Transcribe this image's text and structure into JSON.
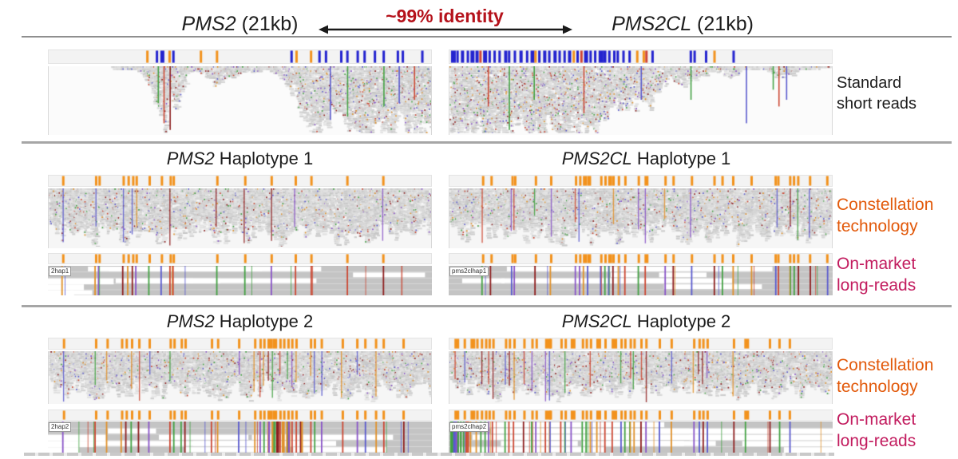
{
  "header": {
    "left": {
      "gene": "PMS2",
      "rest": " (21kb)"
    },
    "right": {
      "gene": "PMS2CL",
      "rest": " (21kb)"
    },
    "identity": "~99% identity"
  },
  "sections": {
    "hap1": {
      "left": {
        "gene": "PMS2",
        "rest": " Haplotype 1"
      },
      "right": {
        "gene": "PMS2CL",
        "rest": " Haplotype 1"
      }
    },
    "hap2": {
      "left": {
        "gene": "PMS2",
        "rest": " Haplotype 2"
      },
      "right": {
        "gene": "PMS2CL",
        "rest": " Haplotype 2"
      }
    }
  },
  "side_labels": {
    "short_reads": "Standard\nshort reads",
    "constellation": "Constellation\ntechnology",
    "long_reads": "On-market\nlong-reads"
  },
  "read_labels": {
    "hap1_left": "2hap1",
    "hap1_right": "pms2clhap1",
    "hap2_left": "2hap2",
    "hap2_right": "pms2clhap2"
  },
  "colors": {
    "identity_red": "#b5121b",
    "arrow_black": "#1a1a1a",
    "constellation_orange": "#e2590a",
    "longreads_magenta": "#c21b5e",
    "tick_blue": "#2323cf",
    "tick_orange": "#f2921d",
    "tick_red": "#cf4436",
    "block_gray": "#c4c4c4",
    "mm_g": "#44a244",
    "mm_bl": "#5a5ace",
    "mm_r": "#cc4833",
    "mm_o": "#e0912a",
    "mm_dr": "#8e1f1f",
    "mm_p": "#8a55c8"
  },
  "variant_ticks": {
    "short_left": [
      [
        0.255,
        "o"
      ],
      [
        0.28,
        "b"
      ],
      [
        0.292,
        "b",
        5
      ],
      [
        0.313,
        "o"
      ],
      [
        0.323,
        "b"
      ],
      [
        0.395,
        "o"
      ],
      [
        0.437,
        "o"
      ],
      [
        0.632,
        "b"
      ],
      [
        0.645,
        "o"
      ],
      [
        0.683,
        "o"
      ],
      [
        0.705,
        "b"
      ],
      [
        0.722,
        "b"
      ],
      [
        0.762,
        "b"
      ],
      [
        0.778,
        "b"
      ],
      [
        0.805,
        "b"
      ],
      [
        0.823,
        "b"
      ],
      [
        0.85,
        "b"
      ],
      [
        0.873,
        "b"
      ],
      [
        0.91,
        "b"
      ],
      [
        0.923,
        "b"
      ],
      [
        0.974,
        "b"
      ]
    ],
    "short_right": [
      [
        0.004,
        "b",
        6
      ],
      [
        0.018,
        "b"
      ],
      [
        0.03,
        "b",
        4
      ],
      [
        0.045,
        "b"
      ],
      [
        0.055,
        "b",
        5
      ],
      [
        0.068,
        "b",
        4
      ],
      [
        0.078,
        "r"
      ],
      [
        0.088,
        "b",
        5
      ],
      [
        0.102,
        "b"
      ],
      [
        0.115,
        "b"
      ],
      [
        0.128,
        "b"
      ],
      [
        0.143,
        "b",
        4
      ],
      [
        0.153,
        "b"
      ],
      [
        0.168,
        "b"
      ],
      [
        0.183,
        "b",
        4
      ],
      [
        0.2,
        "b"
      ],
      [
        0.212,
        "b",
        5
      ],
      [
        0.222,
        "o"
      ],
      [
        0.232,
        "b"
      ],
      [
        0.245,
        "b",
        4
      ],
      [
        0.258,
        "b"
      ],
      [
        0.272,
        "b",
        4
      ],
      [
        0.285,
        "b"
      ],
      [
        0.298,
        "b"
      ],
      [
        0.31,
        "b",
        4
      ],
      [
        0.322,
        "o"
      ],
      [
        0.332,
        "b"
      ],
      [
        0.342,
        "r"
      ],
      [
        0.352,
        "b",
        5
      ],
      [
        0.366,
        "b"
      ],
      [
        0.378,
        "b"
      ],
      [
        0.39,
        "b",
        6
      ],
      [
        0.402,
        "b",
        4
      ],
      [
        0.415,
        "b"
      ],
      [
        0.428,
        "b"
      ],
      [
        0.437,
        "b"
      ],
      [
        0.452,
        "b"
      ],
      [
        0.468,
        "b"
      ],
      [
        0.488,
        "o"
      ],
      [
        0.505,
        "o"
      ],
      [
        0.512,
        "r"
      ],
      [
        0.528,
        "b"
      ],
      [
        0.628,
        "b"
      ],
      [
        0.638,
        "b"
      ],
      [
        0.668,
        "b"
      ],
      [
        0.69,
        "o"
      ],
      [
        0.74,
        "b"
      ]
    ],
    "hap1_left": [
      [
        0.035,
        "o"
      ],
      [
        0.121,
        "o"
      ],
      [
        0.13,
        "o"
      ],
      [
        0.193,
        "o"
      ],
      [
        0.206,
        "o"
      ],
      [
        0.218,
        "o"
      ],
      [
        0.227,
        "o"
      ],
      [
        0.261,
        "o"
      ],
      [
        0.293,
        "o"
      ],
      [
        0.316,
        "o"
      ],
      [
        0.324,
        "o"
      ],
      [
        0.438,
        "o"
      ],
      [
        0.511,
        "o"
      ],
      [
        0.58,
        "o"
      ],
      [
        0.643,
        "o"
      ],
      [
        0.684,
        "o"
      ],
      [
        0.778,
        "o"
      ],
      [
        0.872,
        "o"
      ]
    ],
    "hap1_right": [
      [
        0.085,
        "o"
      ],
      [
        0.107,
        "o"
      ],
      [
        0.162,
        "o"
      ],
      [
        0.169,
        "o"
      ],
      [
        0.223,
        "o"
      ],
      [
        0.263,
        "o"
      ],
      [
        0.328,
        "o"
      ],
      [
        0.339,
        "o"
      ],
      [
        0.349,
        "o",
        5
      ],
      [
        0.36,
        "o",
        5
      ],
      [
        0.394,
        "o"
      ],
      [
        0.405,
        "o"
      ],
      [
        0.415,
        "o",
        5
      ],
      [
        0.426,
        "o"
      ],
      [
        0.44,
        "o"
      ],
      [
        0.457,
        "o"
      ],
      [
        0.492,
        "o"
      ],
      [
        0.51,
        "o",
        5
      ],
      [
        0.562,
        "o"
      ],
      [
        0.583,
        "o"
      ],
      [
        0.631,
        "o"
      ],
      [
        0.69,
        "o"
      ],
      [
        0.711,
        "o"
      ],
      [
        0.739,
        "o"
      ],
      [
        0.787,
        "o"
      ],
      [
        0.85,
        "o"
      ],
      [
        0.857,
        "o"
      ],
      [
        0.888,
        "o"
      ],
      [
        0.898,
        "o"
      ],
      [
        0.909,
        "o"
      ],
      [
        0.94,
        "o"
      ],
      [
        0.985,
        "o"
      ]
    ],
    "hap2_left": [
      [
        0.037,
        "o"
      ],
      [
        0.121,
        "o"
      ],
      [
        0.151,
        "o"
      ],
      [
        0.189,
        "o"
      ],
      [
        0.201,
        "o"
      ],
      [
        0.215,
        "o"
      ],
      [
        0.234,
        "o"
      ],
      [
        0.261,
        "o"
      ],
      [
        0.316,
        "o"
      ],
      [
        0.326,
        "o"
      ],
      [
        0.345,
        "o"
      ],
      [
        0.355,
        "o"
      ],
      [
        0.424,
        "o"
      ],
      [
        0.44,
        "o"
      ],
      [
        0.495,
        "o"
      ],
      [
        0.537,
        "o"
      ],
      [
        0.551,
        "o"
      ],
      [
        0.561,
        "o"
      ],
      [
        0.572,
        "o",
        6
      ],
      [
        0.585,
        "o",
        6
      ],
      [
        0.603,
        "o"
      ],
      [
        0.613,
        "o"
      ],
      [
        0.624,
        "o"
      ],
      [
        0.634,
        "o"
      ],
      [
        0.645,
        "o"
      ],
      [
        0.683,
        "o"
      ],
      [
        0.693,
        "o"
      ],
      [
        0.711,
        "o"
      ],
      [
        0.766,
        "o"
      ],
      [
        0.804,
        "o"
      ],
      [
        0.825,
        "o"
      ],
      [
        0.853,
        "o"
      ],
      [
        0.873,
        "o"
      ],
      [
        0.925,
        "o"
      ]
    ],
    "hap2_right": [
      [
        0.013,
        "o",
        6
      ],
      [
        0.037,
        "o"
      ],
      [
        0.055,
        "o",
        6
      ],
      [
        0.07,
        "o"
      ],
      [
        0.082,
        "o"
      ],
      [
        0.093,
        "o"
      ],
      [
        0.102,
        "o"
      ],
      [
        0.112,
        "o"
      ],
      [
        0.145,
        "o"
      ],
      [
        0.155,
        "o"
      ],
      [
        0.167,
        "o"
      ],
      [
        0.193,
        "o"
      ],
      [
        0.214,
        "o"
      ],
      [
        0.225,
        "o"
      ],
      [
        0.25,
        "o",
        7
      ],
      [
        0.262,
        "o"
      ],
      [
        0.29,
        "o"
      ],
      [
        0.301,
        "o"
      ],
      [
        0.317,
        "o",
        6
      ],
      [
        0.346,
        "o"
      ],
      [
        0.356,
        "o"
      ],
      [
        0.367,
        "o"
      ],
      [
        0.384,
        "o",
        6
      ],
      [
        0.405,
        "o"
      ],
      [
        0.424,
        "o",
        7
      ],
      [
        0.447,
        "o"
      ],
      [
        0.457,
        "o"
      ],
      [
        0.471,
        "o"
      ],
      [
        0.481,
        "o"
      ],
      [
        0.499,
        "o"
      ],
      [
        0.512,
        "o"
      ],
      [
        0.547,
        "o"
      ],
      [
        0.578,
        "o"
      ],
      [
        0.637,
        "o"
      ],
      [
        0.651,
        "o"
      ],
      [
        0.661,
        "o"
      ],
      [
        0.672,
        "o"
      ],
      [
        0.741,
        "o"
      ],
      [
        0.771,
        "o",
        6
      ],
      [
        0.835,
        "o"
      ],
      [
        0.86,
        "o"
      ],
      [
        0.887,
        "o"
      ]
    ]
  },
  "profiles": {
    "short_left": [
      [
        0,
        0
      ],
      [
        0.16,
        0
      ],
      [
        0.17,
        0.05
      ],
      [
        0.2,
        0.03
      ],
      [
        0.24,
        0.06
      ],
      [
        0.26,
        0.35
      ],
      [
        0.285,
        0.55
      ],
      [
        0.3,
        0.85
      ],
      [
        0.315,
        0.45
      ],
      [
        0.33,
        0.65
      ],
      [
        0.345,
        0.3
      ],
      [
        0.36,
        0.15
      ],
      [
        0.38,
        0.05
      ],
      [
        0.41,
        0.12
      ],
      [
        0.43,
        0.3
      ],
      [
        0.455,
        0.18
      ],
      [
        0.48,
        0.12
      ],
      [
        0.51,
        0.1
      ],
      [
        0.54,
        0.06
      ],
      [
        0.57,
        0.06
      ],
      [
        0.6,
        0.12
      ],
      [
        0.62,
        0.25
      ],
      [
        0.645,
        0.45
      ],
      [
        0.66,
        0.65
      ],
      [
        0.68,
        0.75
      ],
      [
        0.7,
        0.9
      ],
      [
        0.73,
        0.8
      ],
      [
        0.76,
        0.7
      ],
      [
        0.79,
        0.85
      ],
      [
        0.82,
        0.95
      ],
      [
        0.85,
        0.8
      ],
      [
        0.88,
        0.9
      ],
      [
        0.91,
        0.75
      ],
      [
        0.94,
        0.9
      ],
      [
        0.97,
        0.8
      ],
      [
        1,
        0.85
      ]
    ],
    "short_right": [
      [
        0,
        0.9
      ],
      [
        0.03,
        0.98
      ],
      [
        0.07,
        0.85
      ],
      [
        0.1,
        0.95
      ],
      [
        0.14,
        0.9
      ],
      [
        0.18,
        0.8
      ],
      [
        0.22,
        0.95
      ],
      [
        0.26,
        0.85
      ],
      [
        0.3,
        0.9
      ],
      [
        0.34,
        0.8
      ],
      [
        0.37,
        0.9
      ],
      [
        0.4,
        0.65
      ],
      [
        0.44,
        0.5
      ],
      [
        0.47,
        0.6
      ],
      [
        0.5,
        0.4
      ],
      [
        0.52,
        0.55
      ],
      [
        0.55,
        0.25
      ],
      [
        0.58,
        0.2
      ],
      [
        0.61,
        0.25
      ],
      [
        0.64,
        0.15
      ],
      [
        0.67,
        0.1
      ],
      [
        0.7,
        0.06
      ],
      [
        0.73,
        0.15
      ],
      [
        0.76,
        0.05
      ],
      [
        0.79,
        0.03
      ],
      [
        0.82,
        0.04
      ],
      [
        0.85,
        0.12
      ],
      [
        0.88,
        0.14
      ],
      [
        0.91,
        0.06
      ],
      [
        0.95,
        0.03
      ],
      [
        1,
        0.02
      ]
    ],
    "dense": [
      [
        0,
        0.55
      ],
      [
        0.04,
        0.75
      ],
      [
        0.08,
        0.6
      ],
      [
        0.12,
        0.8
      ],
      [
        0.16,
        0.62
      ],
      [
        0.2,
        0.78
      ],
      [
        0.24,
        0.6
      ],
      [
        0.28,
        0.82
      ],
      [
        0.32,
        0.65
      ],
      [
        0.36,
        0.78
      ],
      [
        0.4,
        0.6
      ],
      [
        0.44,
        0.8
      ],
      [
        0.48,
        0.66
      ],
      [
        0.52,
        0.78
      ],
      [
        0.56,
        0.6
      ],
      [
        0.6,
        0.8
      ],
      [
        0.64,
        0.65
      ],
      [
        0.68,
        0.78
      ],
      [
        0.72,
        0.62
      ],
      [
        0.76,
        0.8
      ],
      [
        0.8,
        0.64
      ],
      [
        0.84,
        0.78
      ],
      [
        0.88,
        0.6
      ],
      [
        0.92,
        0.75
      ],
      [
        0.96,
        0.62
      ],
      [
        1,
        0.7
      ]
    ]
  },
  "tracks": {
    "strip_short_left": {
      "kind": "ticks",
      "ticks": "short_left",
      "seed": 1
    },
    "strip_short_right": {
      "kind": "ticks",
      "ticks": "short_right",
      "seed": 2
    },
    "pile_short_left": {
      "kind": "spikes",
      "profile": "short_left",
      "seed": 3,
      "speckle": 0.25,
      "vlines": [
        [
          0.285,
          "g",
          0.55
        ],
        [
          0.3,
          "r",
          0.85
        ],
        [
          0.316,
          "dr",
          0.95
        ],
        [
          0.735,
          "bl",
          0.8
        ],
        [
          0.78,
          "g",
          0.75
        ],
        [
          0.875,
          "g",
          0.6
        ],
        [
          0.915,
          "bl",
          0.55
        ],
        [
          0.955,
          "r",
          0.5
        ]
      ]
    },
    "pile_short_right": {
      "kind": "spikes",
      "profile": "short_right",
      "seed": 4,
      "speckle": 0.28,
      "vlines": [
        [
          0.1,
          "r",
          0.6
        ],
        [
          0.155,
          "g",
          0.95
        ],
        [
          0.22,
          "g",
          0.5
        ],
        [
          0.35,
          "r",
          0.7
        ],
        [
          0.5,
          "bl",
          0.5
        ],
        [
          0.63,
          "g",
          0.5
        ],
        [
          0.775,
          "bl",
          0.85
        ],
        [
          0.845,
          "g",
          0.35
        ],
        [
          0.86,
          "r",
          0.6
        ],
        [
          0.88,
          "bl",
          0.5
        ]
      ]
    },
    "strip_h1_left": {
      "kind": "ticks",
      "ticks": "hap1_left",
      "seed": 1
    },
    "strip_h1_right": {
      "kind": "ticks",
      "ticks": "hap1_right",
      "seed": 1
    },
    "pile_h1_left": {
      "kind": "dense",
      "profile": "dense",
      "seed": 5,
      "speckle": 0.16,
      "tick_vlines": true,
      "ticks": "hap1_left"
    },
    "pile_h1_right": {
      "kind": "dense",
      "profile": "dense",
      "seed": 6,
      "speckle": 0.16,
      "tick_vlines": true,
      "ticks": "hap1_right"
    },
    "strip_h1_left_long": {
      "kind": "ticks",
      "ticks": "hap1_left",
      "seed": 1
    },
    "strip_h1_right_long": {
      "kind": "ticks",
      "ticks": "hap1_right",
      "seed": 1
    },
    "block_h1_left": {
      "kind": "long",
      "ticks": "hap1_left",
      "seed": 7,
      "gaps": 9,
      "steps": "left",
      "extra": 10
    },
    "block_h1_right": {
      "kind": "long",
      "ticks": "hap1_right",
      "seed": 8,
      "gaps": 10,
      "extra": 12
    },
    "strip_h2_left": {
      "kind": "ticks",
      "ticks": "hap2_left",
      "seed": 1
    },
    "strip_h2_right": {
      "kind": "ticks",
      "ticks": "hap2_right",
      "seed": 1
    },
    "pile_h2_left": {
      "kind": "dense",
      "profile": "dense",
      "seed": 9,
      "speckle": 0.17,
      "tick_vlines": true,
      "ticks": "hap2_left"
    },
    "pile_h2_right": {
      "kind": "dense",
      "profile": "dense",
      "seed": 10,
      "speckle": 0.2,
      "tick_vlines": true,
      "ticks": "hap2_right"
    },
    "strip_h2_left_long": {
      "kind": "ticks",
      "ticks": "hap2_left",
      "seed": 1
    },
    "strip_h2_right_long": {
      "kind": "ticks",
      "ticks": "hap2_right",
      "seed": 1
    },
    "block_h2_left": {
      "kind": "long",
      "ticks": "hap2_left",
      "seed": 11,
      "gaps": 11,
      "steps": "left",
      "extra": 14,
      "cluster": [
        0.56,
        0.66,
        13
      ]
    },
    "block_h2_right": {
      "kind": "long",
      "ticks": "hap2_right",
      "seed": 12,
      "gaps": 12,
      "steps": "right",
      "extra": 16,
      "cluster": [
        0.0,
        0.05,
        12
      ]
    }
  }
}
